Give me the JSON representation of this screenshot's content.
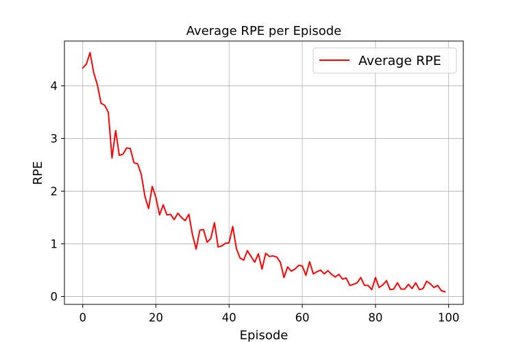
{
  "chart_data": {
    "type": "line",
    "title": "Average RPE per Episode",
    "xlabel": "Episode",
    "ylabel": "RPE",
    "xlim": [
      -5,
      104
    ],
    "ylim": [
      -0.15,
      4.85
    ],
    "xticks": [
      0,
      20,
      40,
      60,
      80,
      100
    ],
    "yticks": [
      0,
      1,
      2,
      3,
      4
    ],
    "grid": true,
    "legend_position": "top-right",
    "series": [
      {
        "name": "Average RPE",
        "color": "#ff0000",
        "x": [
          0,
          1,
          2,
          3,
          4,
          5,
          6,
          7,
          8,
          9,
          10,
          11,
          12,
          13,
          14,
          15,
          16,
          17,
          18,
          19,
          20,
          21,
          22,
          23,
          24,
          25,
          26,
          27,
          28,
          29,
          30,
          31,
          32,
          33,
          34,
          35,
          36,
          37,
          38,
          39,
          40,
          41,
          42,
          43,
          44,
          45,
          46,
          47,
          48,
          49,
          50,
          51,
          52,
          53,
          54,
          55,
          56,
          57,
          58,
          59,
          60,
          61,
          62,
          63,
          64,
          65,
          66,
          67,
          68,
          69,
          70,
          71,
          72,
          73,
          74,
          75,
          76,
          77,
          78,
          79,
          80,
          81,
          82,
          83,
          84,
          85,
          86,
          87,
          88,
          89,
          90,
          91,
          92,
          93,
          94,
          95,
          96,
          97,
          98,
          99
        ],
        "y": [
          4.34,
          4.41,
          4.63,
          4.25,
          4.02,
          3.67,
          3.63,
          3.5,
          2.63,
          3.15,
          2.68,
          2.7,
          2.82,
          2.81,
          2.54,
          2.52,
          2.32,
          1.9,
          1.67,
          2.09,
          1.88,
          1.55,
          1.74,
          1.55,
          1.56,
          1.46,
          1.58,
          1.5,
          1.44,
          1.56,
          1.17,
          0.9,
          1.26,
          1.27,
          1.03,
          1.1,
          1.4,
          0.94,
          0.96,
          1.01,
          1.02,
          1.33,
          0.91,
          0.73,
          0.69,
          0.87,
          0.76,
          0.65,
          0.81,
          0.52,
          0.82,
          0.76,
          0.77,
          0.75,
          0.65,
          0.36,
          0.56,
          0.48,
          0.52,
          0.59,
          0.58,
          0.4,
          0.66,
          0.43,
          0.47,
          0.5,
          0.43,
          0.49,
          0.42,
          0.37,
          0.42,
          0.33,
          0.35,
          0.21,
          0.23,
          0.26,
          0.36,
          0.21,
          0.21,
          0.13,
          0.36,
          0.17,
          0.22,
          0.3,
          0.13,
          0.14,
          0.26,
          0.14,
          0.14,
          0.23,
          0.15,
          0.26,
          0.13,
          0.15,
          0.29,
          0.24,
          0.17,
          0.21,
          0.11,
          0.09
        ]
      }
    ]
  }
}
